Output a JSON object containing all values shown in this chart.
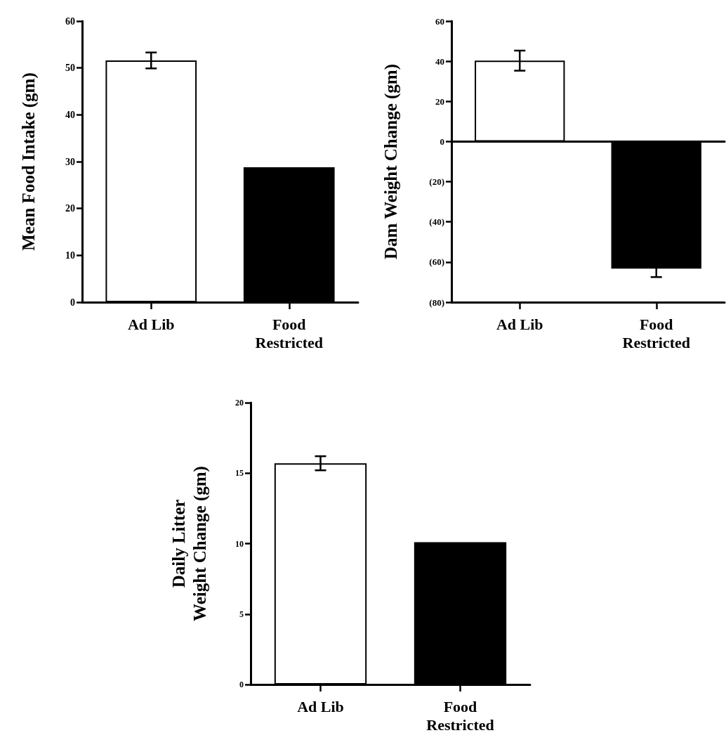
{
  "chart_data": [
    {
      "type": "bar",
      "ylabel": "Mean Food Intake (gm)",
      "categories": [
        "Ad Lib",
        "Food\nRestricted"
      ],
      "values": [
        51.6,
        28.8
      ],
      "colors": [
        "#ffffff",
        "#000000"
      ],
      "errors": [
        1.7,
        null
      ],
      "ylim": [
        0,
        60
      ],
      "yticks": [
        0,
        10,
        20,
        30,
        40,
        50,
        60
      ]
    },
    {
      "type": "bar",
      "ylabel": "Dam Weight Change (gm)",
      "categories": [
        "Ad Lib",
        "Food\nRestricted"
      ],
      "values": [
        40.3,
        -63.3
      ],
      "colors": [
        "#ffffff",
        "#000000"
      ],
      "errors": [
        5,
        4.2
      ],
      "ylim": [
        -80,
        60
      ],
      "yticks": [
        {
          "value": -80,
          "label": "(80)"
        },
        {
          "value": -60,
          "label": "(60)"
        },
        {
          "value": -40,
          "label": "(40)"
        },
        {
          "value": -20,
          "label": "(20)"
        },
        0,
        20,
        40,
        60
      ]
    },
    {
      "type": "bar",
      "ylabel": "Daily Litter\nWeight Change (gm)",
      "categories": [
        "Ad Lib",
        "Food\nRestricted"
      ],
      "values": [
        15.7,
        10.1
      ],
      "colors": [
        "#ffffff",
        "#000000"
      ],
      "errors": [
        0.5,
        null
      ],
      "ylim": [
        0,
        20
      ],
      "yticks": [
        0,
        5,
        10,
        15,
        20
      ]
    }
  ]
}
